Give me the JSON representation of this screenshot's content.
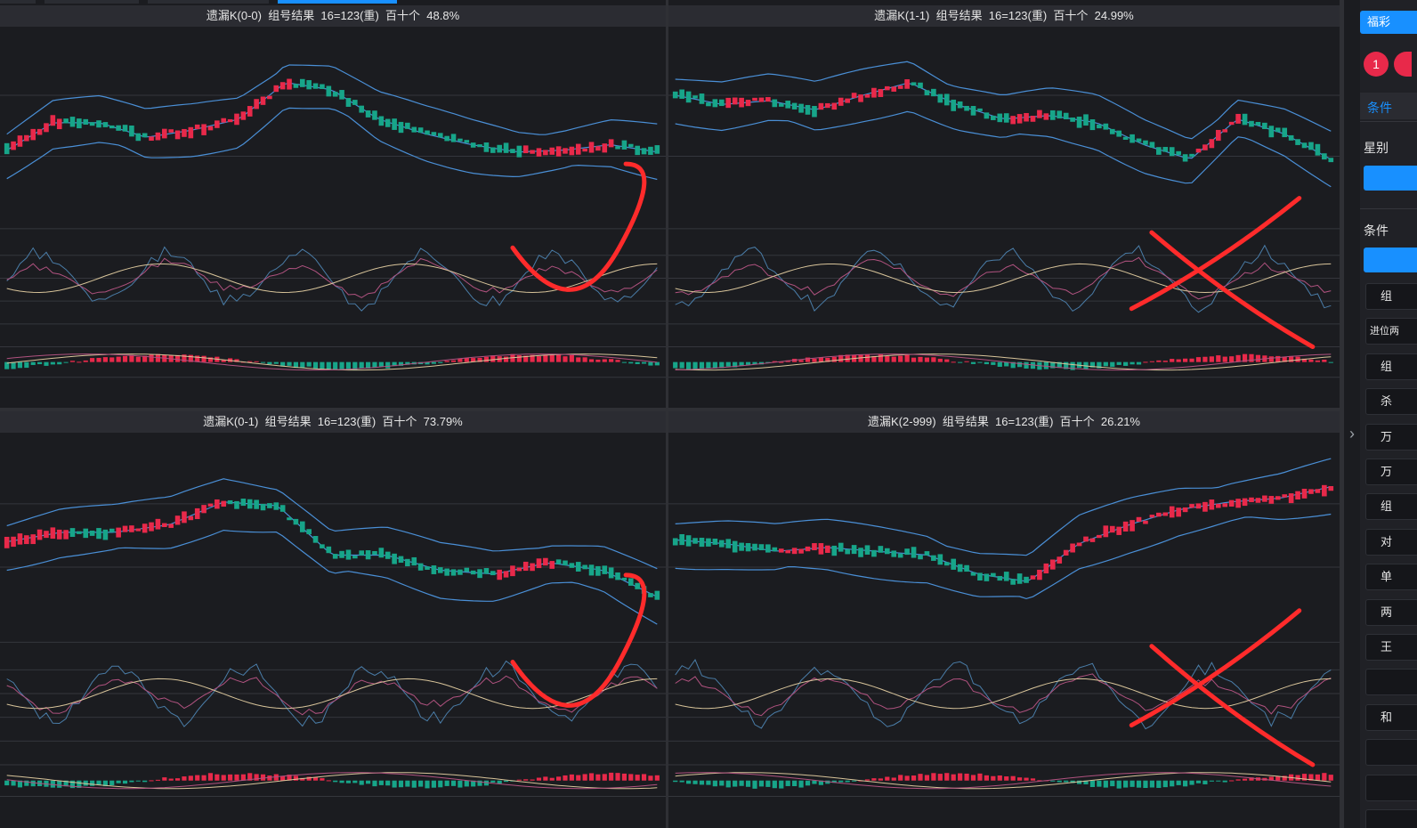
{
  "panels": [
    {
      "id": "p00",
      "title": "遗漏K(0-0)  组号结果  16=123(重)  百十个  48.8%"
    },
    {
      "id": "p11",
      "title": "遗漏K(1-1)  组号结果  16=123(重)  百十个  24.99%"
    },
    {
      "id": "p01",
      "title": "遗漏K(0-1)  组号结果  16=123(重)  百十个  73.79%"
    },
    {
      "id": "p2999",
      "title": "遗漏K(2-999)  组号结果  16=123(重)  百十个  26.21%"
    }
  ],
  "sidebar": {
    "lottery_button": "福彩",
    "draw_badge": "1",
    "condition_tab": "条件",
    "star_label": "星别",
    "condition_label": "条件",
    "buttons": [
      "组",
      "进位两",
      "组",
      "杀",
      "万",
      "万",
      "组",
      "对",
      "单",
      "两",
      "王",
      "",
      "和",
      "",
      "",
      ""
    ]
  },
  "collapse_icon": "chevron-right-icon",
  "colors": {
    "up": "#e8294a",
    "down": "#17a589",
    "boll": "#4a8fd6",
    "accent": "#1890ff",
    "annotation": "#ff2b2b"
  },
  "annotations": [
    "check-mark",
    "cross-mark",
    "check-mark",
    "cross-mark"
  ]
}
